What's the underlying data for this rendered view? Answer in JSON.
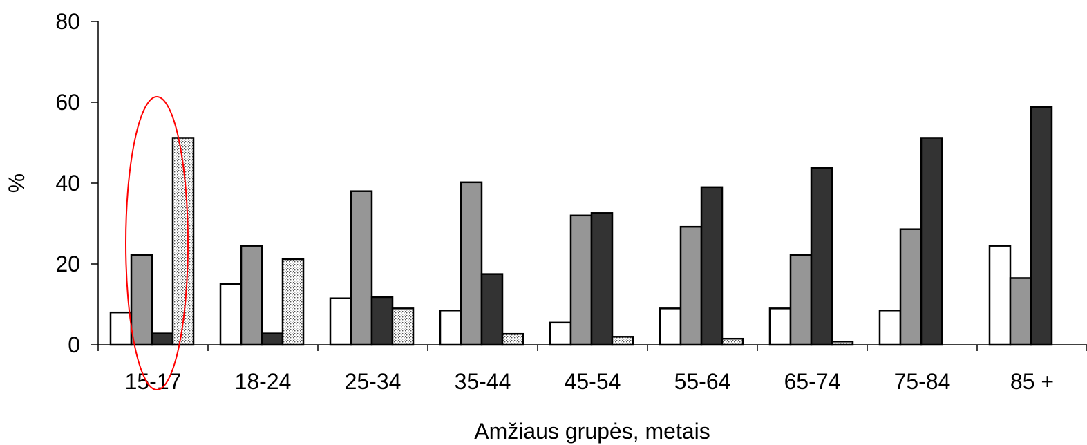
{
  "chart_data": {
    "type": "bar",
    "title": "",
    "xlabel": "Amžiaus grupės, metais",
    "ylabel": "%",
    "ylim": [
      0,
      80
    ],
    "yticks": [
      0,
      20,
      40,
      60,
      80
    ],
    "grid": false,
    "categories": [
      "15-17",
      "18-24",
      "25-34",
      "35-44",
      "45-54",
      "55-64",
      "65-74",
      "75-84",
      "85 +"
    ],
    "series": [
      {
        "fill": "#ffffff",
        "values": [
          8,
          15,
          11.5,
          8.5,
          5.5,
          9,
          9,
          8.5,
          24.5
        ]
      },
      {
        "fill": "#969696",
        "values": [
          22.2,
          24.5,
          38,
          40.2,
          32,
          29.2,
          22.2,
          28.6,
          16.5
        ]
      },
      {
        "fill": "#333333",
        "values": [
          2.8,
          2.8,
          11.8,
          17.5,
          32.6,
          39,
          43.8,
          51.2,
          58.8
        ]
      },
      {
        "fill": "dotted",
        "values": [
          51.2,
          21.2,
          9,
          2.7,
          2,
          1.5,
          0.8,
          null,
          null
        ]
      }
    ],
    "highlight": {
      "category": "15-17",
      "shape": "ellipse",
      "color": "#ff0000"
    }
  }
}
